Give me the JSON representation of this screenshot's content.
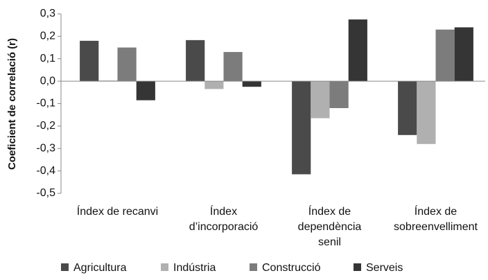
{
  "chart_data": {
    "type": "bar",
    "y_label": "Coeficient de correlació (r)",
    "categories": [
      "Índex de recanvi",
      "Índex\nd’incorporació",
      "Índex de\ndependència\nsenil",
      "Índex de\nsobreenvelliment"
    ],
    "series": [
      {
        "name": "Agricultura",
        "color": "#4a4a4a",
        "values": [
          0.18,
          0.183,
          -0.415,
          -0.24
        ]
      },
      {
        "name": "Indústria",
        "color": "#b0b0b0",
        "values": [
          0.003,
          -0.035,
          -0.165,
          -0.28
        ]
      },
      {
        "name": "Construcció",
        "color": "#7c7c7c",
        "values": [
          0.15,
          0.13,
          -0.12,
          0.23
        ]
      },
      {
        "name": "Serveis",
        "color": "#353535",
        "values": [
          -0.085,
          -0.025,
          0.275,
          0.24
        ]
      }
    ],
    "ylim": [
      -0.5,
      0.3
    ],
    "yticks": [
      {
        "value": 0.3,
        "label": "0,3"
      },
      {
        "value": 0.2,
        "label": "0,2"
      },
      {
        "value": 0.1,
        "label": "0,1"
      },
      {
        "value": 0,
        "label": "0,0"
      },
      {
        "value": -0.1,
        "label": "-0,1"
      },
      {
        "value": -0.2,
        "label": "-0,2"
      },
      {
        "value": -0.3,
        "label": "-0,3"
      },
      {
        "value": -0.4,
        "label": "-0,4"
      },
      {
        "value": -0.5,
        "label": "-0,5"
      }
    ],
    "legend": "bottom"
  }
}
